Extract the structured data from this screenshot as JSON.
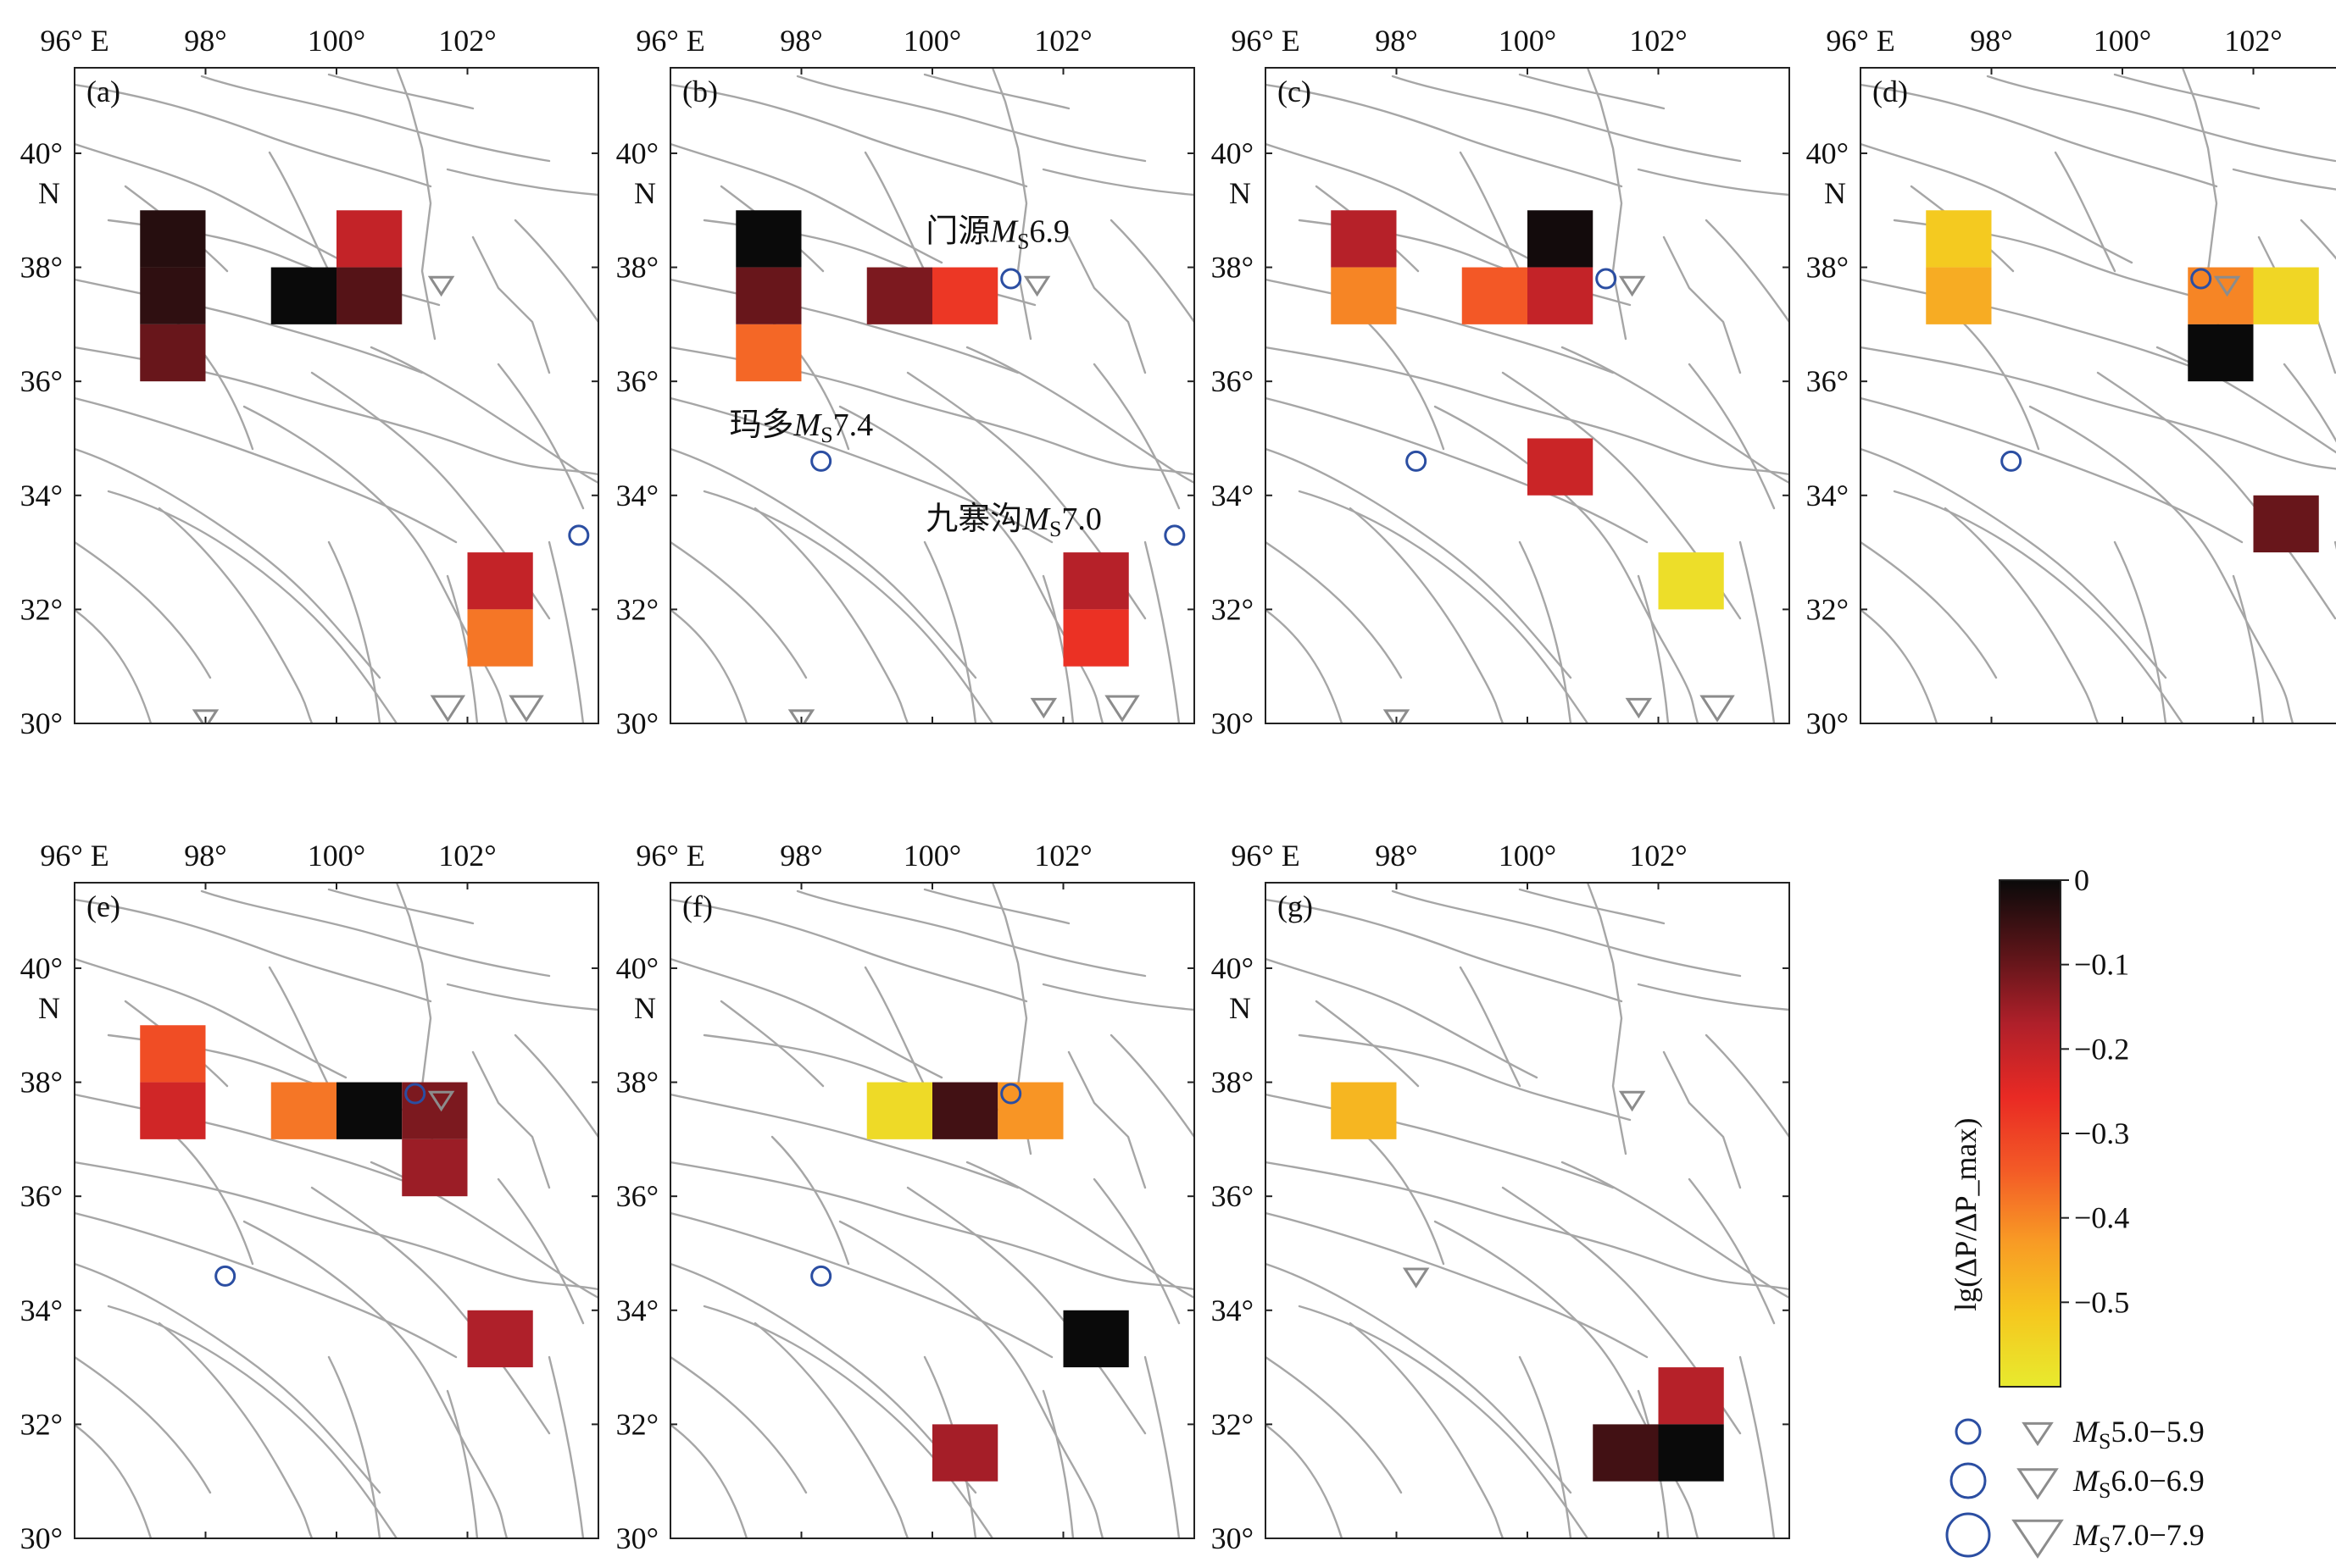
{
  "chart_data": {
    "type": "heatmap",
    "lon_ticks": [
      "96° E",
      "98°",
      "100°",
      "102°"
    ],
    "lat_ticks": [
      "40°",
      "38°",
      "36°",
      "34°",
      "32°",
      "30°"
    ],
    "lat_unit": "N",
    "xlim": [
      96,
      104
    ],
    "ylim": [
      30,
      41.5
    ],
    "colorbar": {
      "label": "lg(ΔP/ΔP_max)",
      "range": [
        -0.6,
        0
      ],
      "ticks": [
        "0",
        "−0.1",
        "−0.2",
        "−0.3",
        "−0.4",
        "−0.5"
      ],
      "colors": [
        "#e8ea2e",
        "#f5c81f",
        "#f89b25",
        "#f35a26",
        "#e92a24",
        "#b0202a",
        "#5a1418",
        "#0a0a0a"
      ]
    },
    "panels": [
      {
        "label": "(a)",
        "cells": [
          {
            "lon": 97,
            "lat": 38,
            "v": -0.03
          },
          {
            "lon": 97,
            "lat": 37,
            "v": -0.04
          },
          {
            "lon": 97,
            "lat": 36,
            "v": -0.1
          },
          {
            "lon": 99,
            "lat": 37,
            "v": 0
          },
          {
            "lon": 100,
            "lat": 38,
            "v": -0.2
          },
          {
            "lon": 100,
            "lat": 37,
            "v": -0.08
          },
          {
            "lon": 102,
            "lat": 32,
            "v": -0.2
          },
          {
            "lon": 102,
            "lat": 31,
            "v": -0.38
          }
        ],
        "events": [
          {
            "shape": "triangle",
            "mag": "5",
            "lon": 101.6,
            "lat": 37.7
          },
          {
            "shape": "triangle",
            "mag": "5",
            "lon": 98,
            "lat": 30.1
          },
          {
            "shape": "triangle",
            "mag": "6",
            "lon": 101.7,
            "lat": 30.3
          },
          {
            "shape": "triangle",
            "mag": "6",
            "lon": 102.9,
            "lat": 30.3
          },
          {
            "shape": "circle",
            "mag": "5",
            "lon": 103.7,
            "lat": 33.3
          }
        ],
        "annotations": []
      },
      {
        "label": "(b)",
        "cells": [
          {
            "lon": 97,
            "lat": 38,
            "v": 0
          },
          {
            "lon": 97,
            "lat": 37,
            "v": -0.1
          },
          {
            "lon": 97,
            "lat": 36,
            "v": -0.36
          },
          {
            "lon": 99,
            "lat": 37,
            "v": -0.12
          },
          {
            "lon": 100,
            "lat": 37,
            "v": -0.28
          },
          {
            "lon": 102,
            "lat": 32,
            "v": -0.18
          },
          {
            "lon": 102,
            "lat": 31,
            "v": -0.27
          }
        ],
        "events": [
          {
            "shape": "circle",
            "mag": "5",
            "lon": 101.2,
            "lat": 37.8
          },
          {
            "shape": "triangle",
            "mag": "5",
            "lon": 101.6,
            "lat": 37.7
          },
          {
            "shape": "circle",
            "mag": "5",
            "lon": 98.3,
            "lat": 34.6
          },
          {
            "shape": "circle",
            "mag": "5",
            "lon": 103.7,
            "lat": 33.3
          },
          {
            "shape": "triangle",
            "mag": "5",
            "lon": 98,
            "lat": 30.1
          },
          {
            "shape": "triangle",
            "mag": "5",
            "lon": 101.7,
            "lat": 30.3
          },
          {
            "shape": "triangle",
            "mag": "6",
            "lon": 102.9,
            "lat": 30.3
          }
        ],
        "annotations": [
          {
            "pre": "门源",
            "m": "M",
            "sub": "S",
            "post": "6.9",
            "lon": 99.9,
            "lat": 38.45
          },
          {
            "pre": "玛多",
            "m": "M",
            "sub": "S",
            "post": "7.4",
            "lon": 96.9,
            "lat": 35.05
          },
          {
            "pre": "九寨沟",
            "m": "M",
            "sub": "S",
            "post": "7.0",
            "lon": 99.9,
            "lat": 33.4
          }
        ]
      },
      {
        "label": "(c)",
        "cells": [
          {
            "lon": 97,
            "lat": 38,
            "v": -0.18
          },
          {
            "lon": 97,
            "lat": 37,
            "v": -0.4
          },
          {
            "lon": 99,
            "lat": 37,
            "v": -0.34
          },
          {
            "lon": 100,
            "lat": 38,
            "v": -0.01
          },
          {
            "lon": 100,
            "lat": 37,
            "v": -0.2
          },
          {
            "lon": 100,
            "lat": 34,
            "v": -0.21
          },
          {
            "lon": 102,
            "lat": 32,
            "v": -0.57
          }
        ],
        "events": [
          {
            "shape": "circle",
            "mag": "5",
            "lon": 101.2,
            "lat": 37.8
          },
          {
            "shape": "triangle",
            "mag": "5",
            "lon": 101.6,
            "lat": 37.7
          },
          {
            "shape": "circle",
            "mag": "5",
            "lon": 98.3,
            "lat": 34.6
          },
          {
            "shape": "triangle",
            "mag": "5",
            "lon": 98,
            "lat": 30.1
          },
          {
            "shape": "triangle",
            "mag": "5",
            "lon": 101.7,
            "lat": 30.3
          },
          {
            "shape": "triangle",
            "mag": "6",
            "lon": 102.9,
            "lat": 30.3
          }
        ],
        "annotations": []
      },
      {
        "label": "(d)",
        "cells": [
          {
            "lon": 97,
            "lat": 38,
            "v": -0.52
          },
          {
            "lon": 97,
            "lat": 37,
            "v": -0.46
          },
          {
            "lon": 101,
            "lat": 37,
            "v": -0.4
          },
          {
            "lon": 102,
            "lat": 37,
            "v": -0.55
          },
          {
            "lon": 101,
            "lat": 36,
            "v": 0
          },
          {
            "lon": 102,
            "lat": 33,
            "v": -0.1
          }
        ],
        "events": [
          {
            "shape": "circle",
            "mag": "5",
            "lon": 101.2,
            "lat": 37.8
          },
          {
            "shape": "triangle",
            "mag": "5",
            "lon": 101.6,
            "lat": 37.7
          },
          {
            "shape": "circle",
            "mag": "5",
            "lon": 98.3,
            "lat": 34.6
          }
        ],
        "annotations": []
      },
      {
        "label": "(e)",
        "cells": [
          {
            "lon": 97,
            "lat": 38,
            "v": -0.32
          },
          {
            "lon": 97,
            "lat": 37,
            "v": -0.22
          },
          {
            "lon": 99,
            "lat": 37,
            "v": -0.38
          },
          {
            "lon": 100,
            "lat": 37,
            "v": 0
          },
          {
            "lon": 101,
            "lat": 37,
            "v": -0.12
          },
          {
            "lon": 101,
            "lat": 36,
            "v": -0.15
          },
          {
            "lon": 102,
            "lat": 33,
            "v": -0.17
          }
        ],
        "events": [
          {
            "shape": "circle",
            "mag": "5",
            "lon": 101.2,
            "lat": 37.8
          },
          {
            "shape": "triangle",
            "mag": "5",
            "lon": 101.6,
            "lat": 37.7
          },
          {
            "shape": "circle",
            "mag": "5",
            "lon": 98.3,
            "lat": 34.6
          }
        ],
        "annotations": []
      },
      {
        "label": "(f)",
        "cells": [
          {
            "lon": 99,
            "lat": 37,
            "v": -0.56
          },
          {
            "lon": 100,
            "lat": 37,
            "v": -0.06
          },
          {
            "lon": 101,
            "lat": 37,
            "v": -0.42
          },
          {
            "lon": 102,
            "lat": 33,
            "v": 0
          },
          {
            "lon": 100,
            "lat": 31,
            "v": -0.16
          }
        ],
        "events": [
          {
            "shape": "circle",
            "mag": "5",
            "lon": 101.2,
            "lat": 37.8
          },
          {
            "shape": "circle",
            "mag": "5",
            "lon": 98.3,
            "lat": 34.6
          }
        ],
        "annotations": []
      },
      {
        "label": "(g)",
        "cells": [
          {
            "lon": 97,
            "lat": 37,
            "v": -0.48
          },
          {
            "lon": 102,
            "lat": 32,
            "v": -0.18
          },
          {
            "lon": 101,
            "lat": 31,
            "v": -0.06
          },
          {
            "lon": 102,
            "lat": 31,
            "v": 0
          }
        ],
        "events": [
          {
            "shape": "triangle",
            "mag": "5",
            "lon": 101.6,
            "lat": 37.7
          },
          {
            "shape": "triangle",
            "mag": "5",
            "lon": 98.3,
            "lat": 34.6
          }
        ],
        "annotations": []
      }
    ],
    "legend": [
      {
        "m": "M",
        "sub": "S",
        "range": "5.0−5.9",
        "mag": "5"
      },
      {
        "m": "M",
        "sub": "S",
        "range": "6.0−6.9",
        "mag": "6"
      },
      {
        "m": "M",
        "sub": "S",
        "range": "7.0−7.9",
        "mag": "7"
      }
    ],
    "colors": {
      "fault": "#a6a6a6",
      "circle": "#2b4ea2",
      "triangle": "#8c8c8c",
      "frame": "#222222"
    }
  }
}
